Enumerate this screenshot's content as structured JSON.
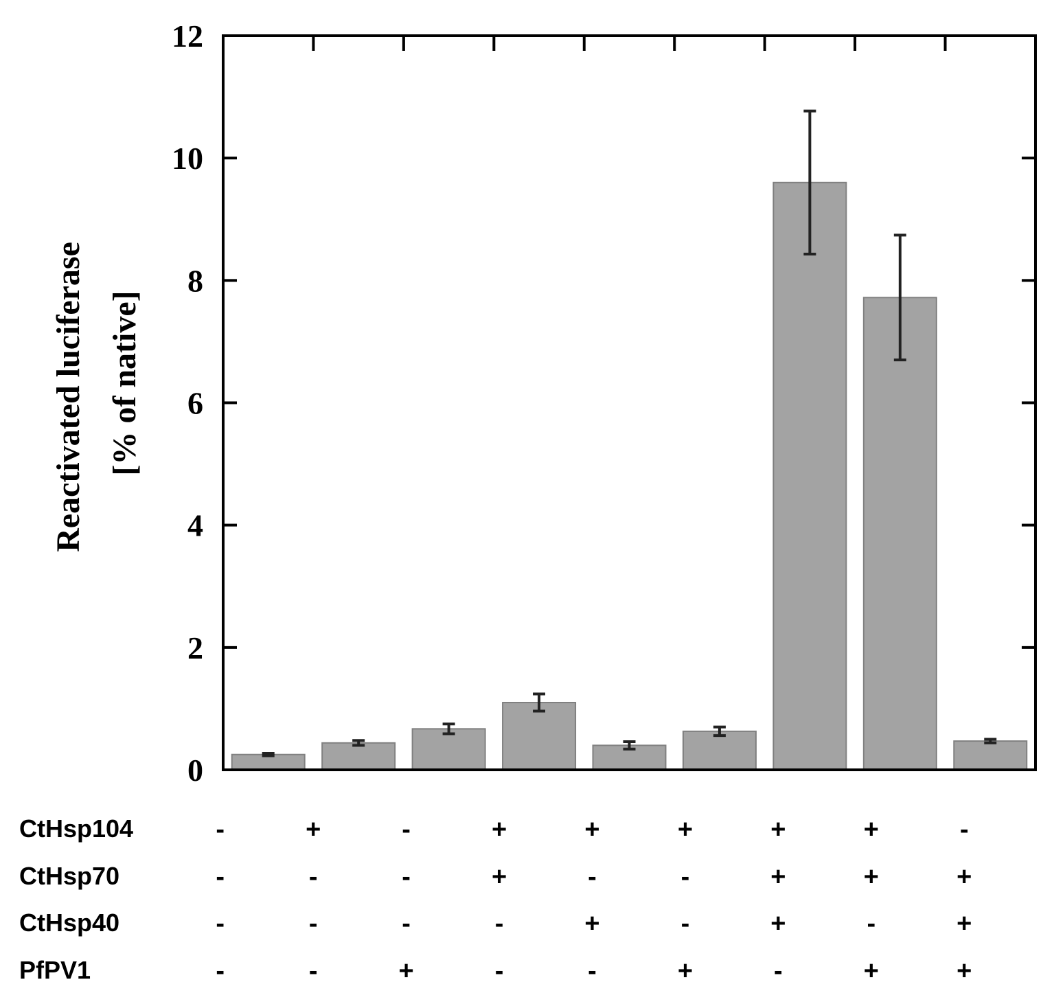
{
  "chart_data": {
    "type": "bar",
    "title": "",
    "xlabel": "",
    "ylabel_lines": [
      "Reactivated luciferase",
      "[% of native]"
    ],
    "ylim": [
      0,
      12
    ],
    "yticks": [
      0,
      2,
      4,
      6,
      8,
      10,
      12
    ],
    "ytick_labels": [
      "0",
      "2",
      "4",
      "6",
      "8",
      "10",
      "12"
    ],
    "grid": false,
    "values": [
      0.25,
      0.44,
      0.67,
      1.1,
      0.4,
      0.63,
      9.6,
      7.72,
      0.47
    ],
    "errors": [
      0.02,
      0.04,
      0.08,
      0.14,
      0.06,
      0.07,
      1.17,
      1.02,
      0.03
    ],
    "conditions": [
      {
        "name": "CtHsp104",
        "marks": [
          "-",
          "+",
          "-",
          "+",
          "+",
          "+",
          "+",
          "+",
          "-"
        ]
      },
      {
        "name": "CtHsp70",
        "marks": [
          "-",
          "-",
          "-",
          "+",
          "-",
          "-",
          "+",
          "+",
          "+"
        ]
      },
      {
        "name": "CtHsp40",
        "marks": [
          "-",
          "-",
          "-",
          "-",
          "+",
          "-",
          "+",
          "-",
          "+"
        ]
      },
      {
        "name": "PfPV1",
        "marks": [
          "-",
          "-",
          "+",
          "-",
          "-",
          "+",
          "-",
          "+",
          "+"
        ]
      }
    ],
    "colors": {
      "bar_fill": "#a3a3a3",
      "bar_stroke": "#808080",
      "error_bar": "#222222",
      "axis": "#000000"
    }
  }
}
